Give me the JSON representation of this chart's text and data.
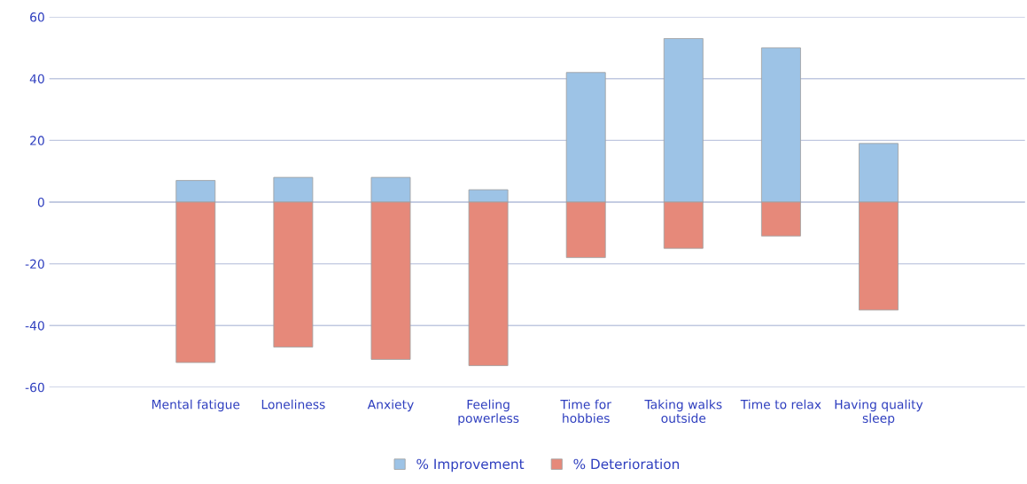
{
  "chart_data": {
    "type": "bar",
    "stacked": true,
    "categories": [
      null,
      "Mental fatigue",
      "Loneliness",
      "Anxiety",
      "Feeling\npowerless",
      "Time for\nhobbies",
      "Taking walks\noutside",
      "Time to relax",
      "Having quality\nsleep",
      null
    ],
    "series": [
      {
        "name": "% Improvement",
        "color": "#9dc3e6",
        "values": [
          null,
          7,
          8,
          8,
          4,
          42,
          53,
          50,
          19,
          null
        ]
      },
      {
        "name": "% Deterioration",
        "color": "#e6897a",
        "values": [
          null,
          -52,
          -47,
          -51,
          -53,
          -18,
          -15,
          -11,
          -35,
          null
        ]
      }
    ],
    "ylim": [
      -60,
      60
    ],
    "yticks": [
      -60,
      -40,
      -20,
      0,
      20,
      40,
      60
    ],
    "grid": "y",
    "legend": "bottom"
  }
}
